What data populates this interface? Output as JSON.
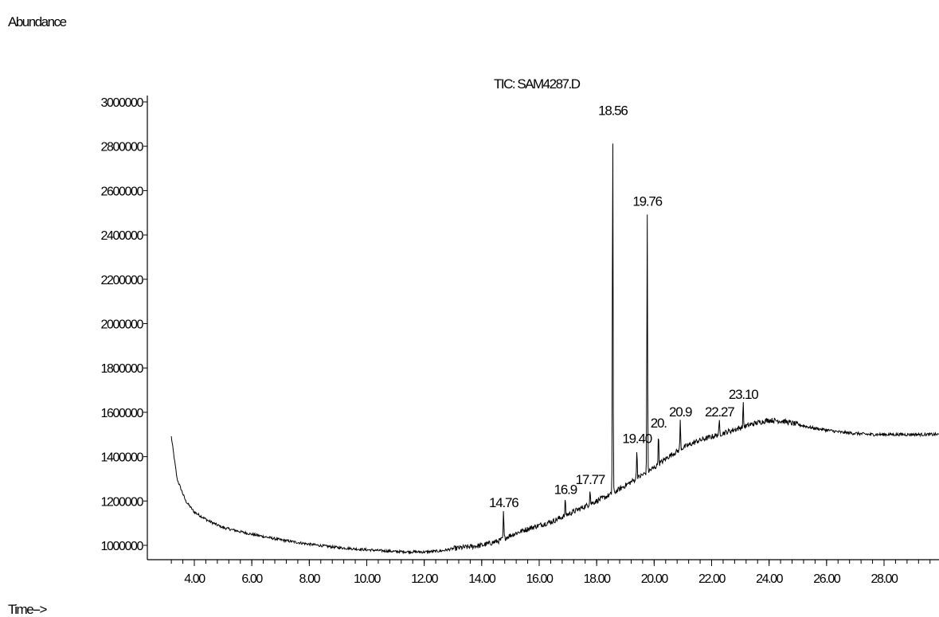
{
  "chart_data": {
    "type": "line",
    "title": "TIC: SAM4287.D",
    "ylabel": "Abundance",
    "xlabel": "Time-->",
    "xlim": [
      3.2,
      29.6
    ],
    "ylim": [
      960000,
      3000000
    ],
    "x_ticks": [
      4.0,
      6.0,
      8.0,
      10.0,
      12.0,
      14.0,
      16.0,
      18.0,
      20.0,
      22.0,
      24.0,
      26.0,
      28.0
    ],
    "x_tick_labels": [
      "4.00",
      "6.00",
      "8.00",
      "10.00",
      "12.00",
      "14.00",
      "16.00",
      "18.00",
      "20.00",
      "22.00",
      "24.00",
      "26.00",
      "28.00"
    ],
    "y_ticks": [
      1000000,
      1200000,
      1400000,
      1600000,
      1800000,
      2000000,
      2200000,
      2400000,
      2600000,
      2800000,
      3000000
    ],
    "y_tick_labels": [
      "1000000",
      "1200000",
      "1400000",
      "1600000",
      "1800000",
      "2000000",
      "2200000",
      "2400000",
      "2600000",
      "2800000",
      "3000000"
    ],
    "grid": false,
    "baseline": {
      "x": [
        3.2,
        3.4,
        3.7,
        4.0,
        4.5,
        5.0,
        6.0,
        7.0,
        8.0,
        9.0,
        10.0,
        11.0,
        12.0,
        12.6,
        13.0,
        14.0,
        14.6,
        15.0,
        15.5,
        16.0,
        16.5,
        17.0,
        17.5,
        18.0,
        18.5,
        19.0,
        19.5,
        20.0,
        20.5,
        21.0,
        21.5,
        22.0,
        22.5,
        23.0,
        23.5,
        24.0,
        24.5,
        25.0,
        25.5,
        26.0,
        26.5,
        27.0,
        27.5,
        28.0,
        28.5,
        29.0,
        29.6
      ],
      "y": [
        1490000,
        1300000,
        1200000,
        1150000,
        1110000,
        1080000,
        1050000,
        1025000,
        1005000,
        990000,
        980000,
        972000,
        970000,
        975000,
        985000,
        1000000,
        1020000,
        1045000,
        1070000,
        1090000,
        1110000,
        1140000,
        1170000,
        1200000,
        1230000,
        1270000,
        1310000,
        1350000,
        1400000,
        1440000,
        1470000,
        1490000,
        1510000,
        1530000,
        1550000,
        1565000,
        1560000,
        1545000,
        1530000,
        1520000,
        1510000,
        1505000,
        1500000,
        1500000,
        1500000,
        1500000,
        1500000
      ]
    },
    "peaks": [
      {
        "x": 14.76,
        "y": 1150000,
        "label": "14.76"
      },
      {
        "x": 16.91,
        "y": 1210000,
        "label": "16.9"
      },
      {
        "x": 17.77,
        "y": 1255000,
        "label": "17.77"
      },
      {
        "x": 18.56,
        "y": 2920000,
        "label": "18.56"
      },
      {
        "x": 19.4,
        "y": 1440000,
        "label": "19.40"
      },
      {
        "x": 19.76,
        "y": 2510000,
        "label": "19.76"
      },
      {
        "x": 20.15,
        "y": 1510000,
        "label": "20."
      },
      {
        "x": 20.91,
        "y": 1560000,
        "label": "20.9"
      },
      {
        "x": 22.27,
        "y": 1560000,
        "label": "22.27"
      },
      {
        "x": 23.1,
        "y": 1640000,
        "label": "23.10"
      }
    ]
  }
}
